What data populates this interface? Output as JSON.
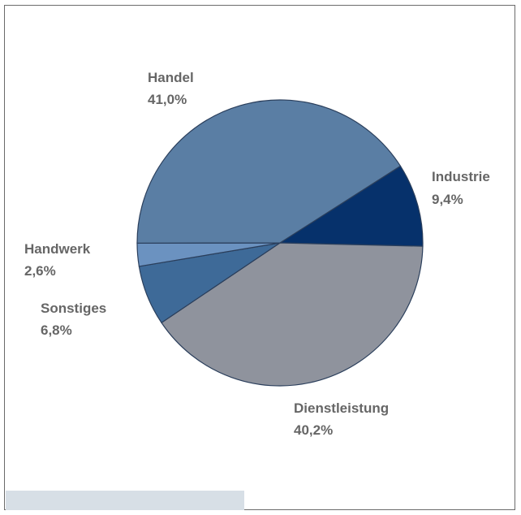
{
  "chart_data": {
    "type": "pie",
    "slices": [
      {
        "label": "Industrie",
        "value": 9.4,
        "display": "9,4%",
        "color": "#06316b"
      },
      {
        "label": "Dienstleistung",
        "value": 40.2,
        "display": "40,2%",
        "color": "#8f939d"
      },
      {
        "label": "Sonstiges",
        "value": 6.8,
        "display": "6,8%",
        "color": "#3e6a98"
      },
      {
        "label": "Handwerk",
        "value": 2.6,
        "display": "2,6%",
        "color": "#6b92c0"
      },
      {
        "label": "Handel",
        "value": 41.0,
        "display": "41,0%",
        "color": "#5a7ea4"
      }
    ],
    "legend": "none"
  }
}
